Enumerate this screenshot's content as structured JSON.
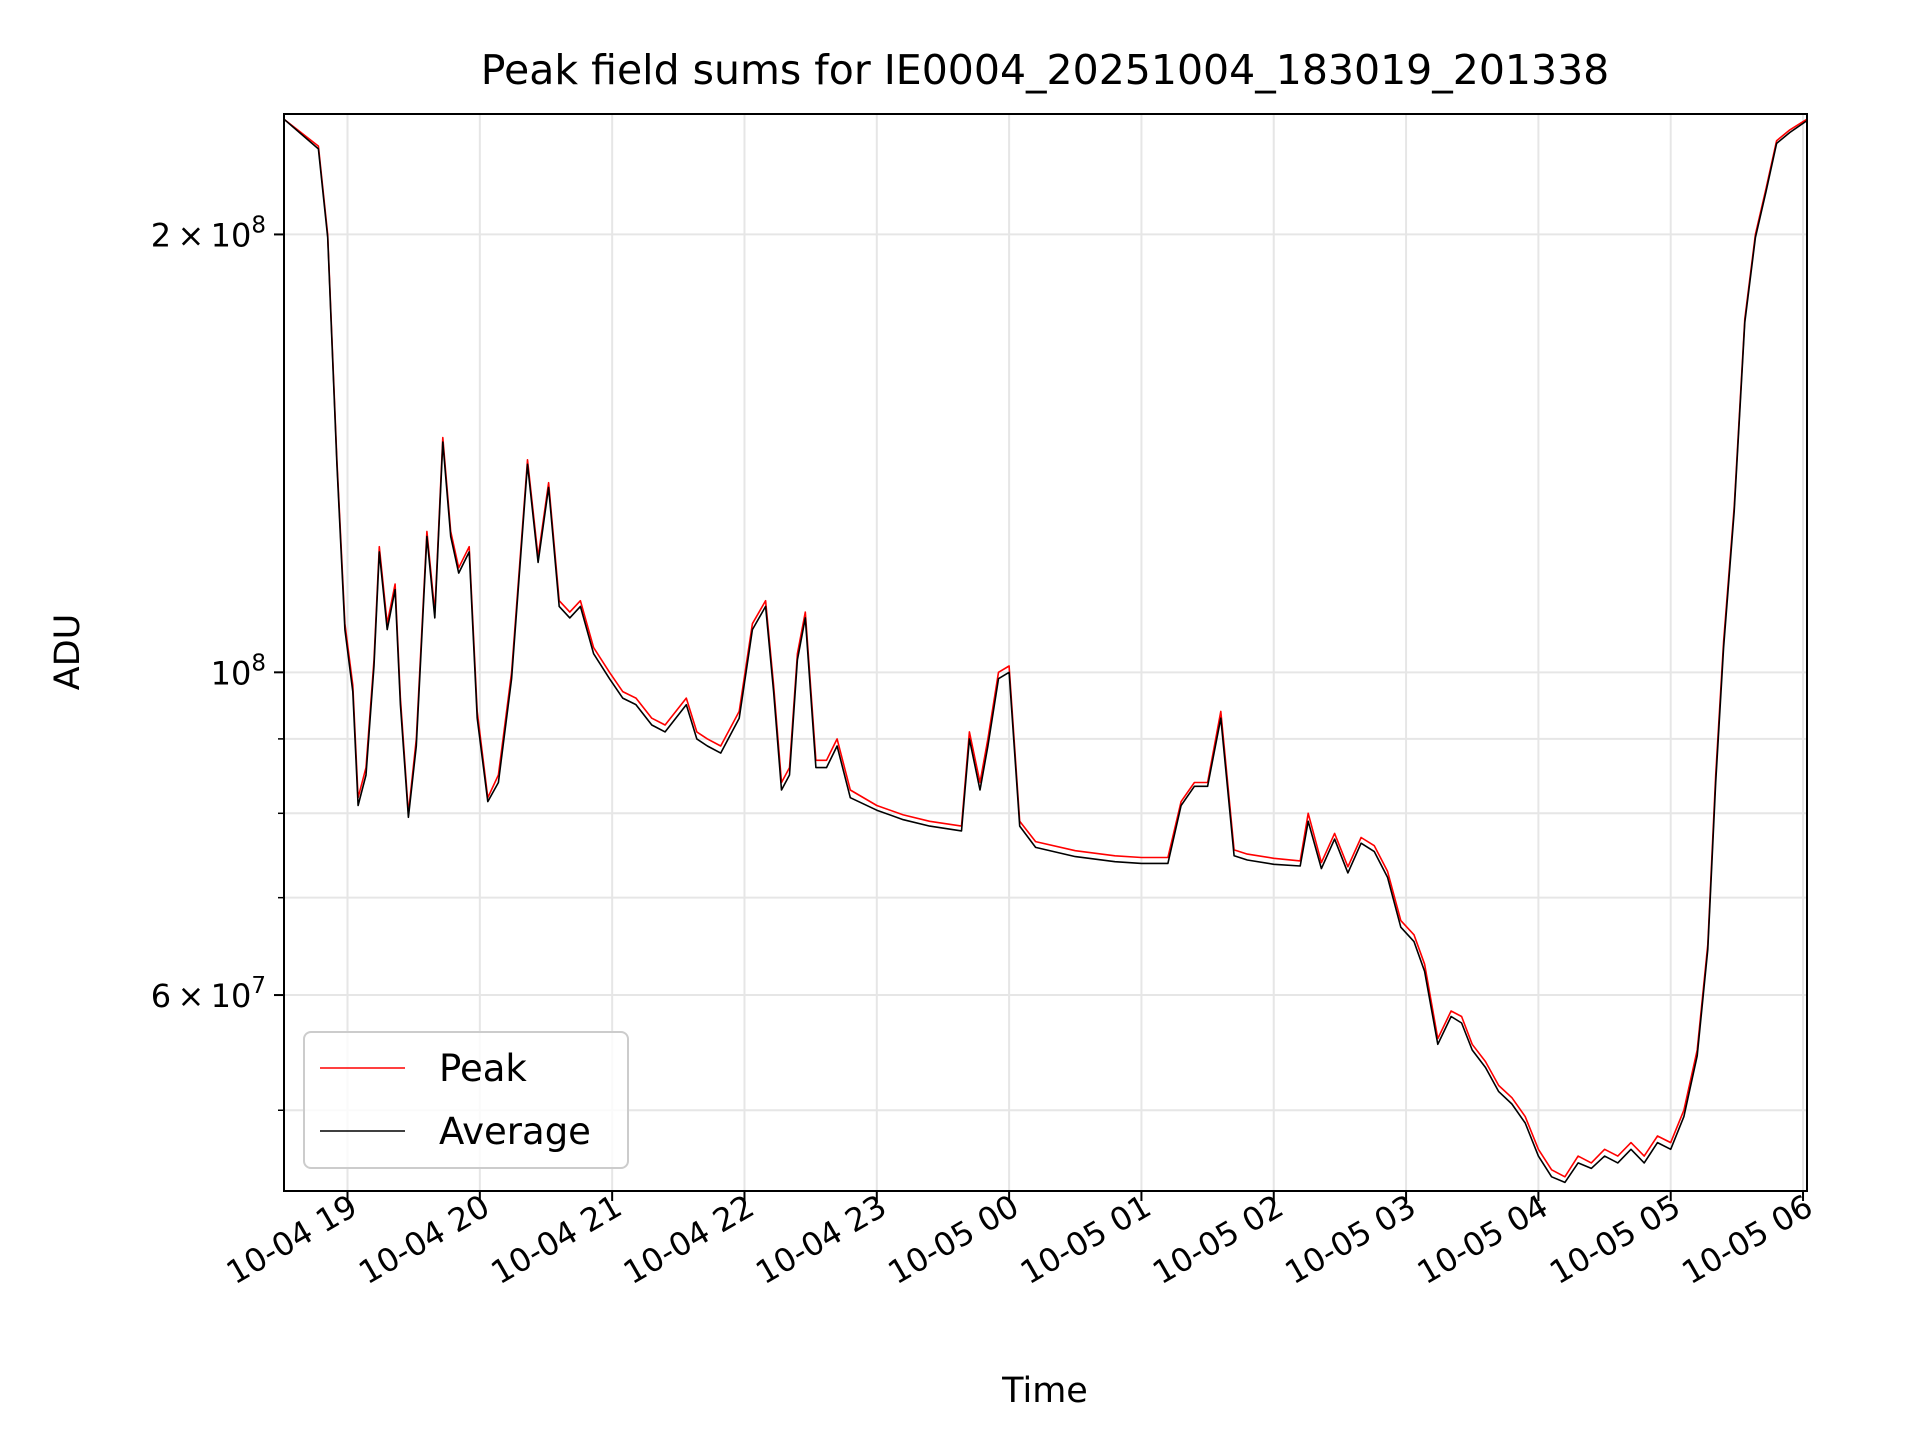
{
  "chart_data": {
    "type": "line",
    "title": "Peak field sums for IE0004_20251004_183019_201338",
    "xlabel": "Time",
    "ylabel": "ADU",
    "yscale": "log",
    "grid": true,
    "legend_position": "lower-left",
    "xlim": [
      18.52,
      30.03
    ],
    "ylim": [
      44000000,
      242000000
    ],
    "x_ticks": [
      {
        "value": 19,
        "label": "10-04 19"
      },
      {
        "value": 20,
        "label": "10-04 20"
      },
      {
        "value": 21,
        "label": "10-04 21"
      },
      {
        "value": 22,
        "label": "10-04 22"
      },
      {
        "value": 23,
        "label": "10-04 23"
      },
      {
        "value": 24,
        "label": "10-05 00"
      },
      {
        "value": 25,
        "label": "10-05 01"
      },
      {
        "value": 26,
        "label": "10-05 02"
      },
      {
        "value": 27,
        "label": "10-05 03"
      },
      {
        "value": 28,
        "label": "10-05 04"
      },
      {
        "value": 29,
        "label": "10-05 05"
      },
      {
        "value": 30,
        "label": "10-05 06"
      }
    ],
    "y_major_ticks": [
      {
        "value": 60000000,
        "mantissa": "6",
        "base": "10",
        "exponent": "7"
      },
      {
        "value": 100000000,
        "mantissa": "",
        "base": "10",
        "exponent": "8"
      },
      {
        "value": 200000000,
        "mantissa": "2",
        "base": "10",
        "exponent": "8"
      }
    ],
    "y_minor_ticks": [
      50000000,
      70000000,
      80000000,
      90000000
    ],
    "x": [
      18.52,
      18.78,
      18.85,
      18.92,
      18.98,
      19.04,
      19.08,
      19.14,
      19.2,
      19.24,
      19.3,
      19.36,
      19.4,
      19.46,
      19.52,
      19.6,
      19.66,
      19.72,
      19.78,
      19.84,
      19.92,
      19.98,
      20.06,
      20.14,
      20.24,
      20.36,
      20.44,
      20.52,
      20.6,
      20.68,
      20.76,
      20.86,
      20.98,
      21.08,
      21.18,
      21.3,
      21.4,
      21.56,
      21.64,
      21.72,
      21.82,
      21.96,
      22.06,
      22.16,
      22.22,
      22.28,
      22.34,
      22.4,
      22.46,
      22.54,
      22.62,
      22.7,
      22.8,
      23.0,
      23.2,
      23.4,
      23.64,
      23.7,
      23.78,
      23.84,
      23.92,
      24.0,
      24.08,
      24.2,
      24.5,
      24.8,
      25.0,
      25.2,
      25.3,
      25.4,
      25.5,
      25.6,
      25.7,
      25.8,
      26.0,
      26.2,
      26.26,
      26.36,
      26.46,
      26.56,
      26.66,
      26.76,
      26.86,
      26.96,
      27.06,
      27.14,
      27.24,
      27.34,
      27.42,
      27.5,
      27.6,
      27.7,
      27.8,
      27.9,
      28.0,
      28.1,
      28.2,
      28.3,
      28.4,
      28.5,
      28.6,
      28.7,
      28.8,
      28.9,
      29.0,
      29.1,
      29.2,
      29.28,
      29.34,
      29.4,
      29.48,
      29.56,
      29.64,
      29.72,
      29.8,
      29.9,
      30.03
    ],
    "series": [
      {
        "name": "Peak",
        "color": "#ff0000",
        "values": [
          240000000,
          230000000,
          200000000,
          140000000,
          108000000,
          98000000,
          82000000,
          86000000,
          102000000,
          122000000,
          108000000,
          115000000,
          96000000,
          80000000,
          90000000,
          125000000,
          110000000,
          145000000,
          125000000,
          118000000,
          122000000,
          94000000,
          82000000,
          85000000,
          100000000,
          140000000,
          120000000,
          135000000,
          112000000,
          110000000,
          112000000,
          104000000,
          100000000,
          97000000,
          96000000,
          93000000,
          92000000,
          96000000,
          91000000,
          90000000,
          89000000,
          94000000,
          108000000,
          112000000,
          98000000,
          84000000,
          86000000,
          103000000,
          110000000,
          87000000,
          87000000,
          90000000,
          83000000,
          81000000,
          79800000,
          79000000,
          78400000,
          91000000,
          84000000,
          90000000,
          100000000,
          101000000,
          79000000,
          76500000,
          75400000,
          74800000,
          74600000,
          74600000,
          81500000,
          84000000,
          84000000,
          94000000,
          75500000,
          75000000,
          74500000,
          74200000,
          80000000,
          74000000,
          77500000,
          73500000,
          77000000,
          76000000,
          73000000,
          67500000,
          66000000,
          63000000,
          56000000,
          58500000,
          58000000,
          55500000,
          54000000,
          52000000,
          51000000,
          49500000,
          47000000,
          45500000,
          45000000,
          46500000,
          46000000,
          47000000,
          46500000,
          47500000,
          46500000,
          48000000,
          47500000,
          50000000,
          55000000,
          65000000,
          85000000,
          105000000,
          130000000,
          175000000,
          200000000,
          215000000,
          232000000,
          236000000,
          240000000
        ]
      },
      {
        "name": "Average",
        "color": "#000000",
        "values": [
          240000000,
          229000000,
          199000000,
          139000000,
          107000000,
          97000000,
          81000000,
          85000000,
          101000000,
          121000000,
          107000000,
          114000000,
          95000000,
          79500000,
          89000000,
          124000000,
          109000000,
          144000000,
          124000000,
          117000000,
          121000000,
          93000000,
          81500000,
          84000000,
          99000000,
          139000000,
          119000000,
          134000000,
          111000000,
          109000000,
          111000000,
          103000000,
          99000000,
          96000000,
          95000000,
          92000000,
          91000000,
          95000000,
          90000000,
          89000000,
          88000000,
          93000000,
          107000000,
          111000000,
          97000000,
          83000000,
          85000000,
          102000000,
          109000000,
          86000000,
          86000000,
          89000000,
          82000000,
          80400000,
          79200000,
          78400000,
          77800000,
          90000000,
          83000000,
          89000000,
          99000000,
          100000000,
          78400000,
          75800000,
          74700000,
          74100000,
          73900000,
          73900000,
          81000000,
          83500000,
          83500000,
          93000000,
          74800000,
          74300000,
          73800000,
          73600000,
          79000000,
          73300000,
          76800000,
          72800000,
          76300000,
          75300000,
          72300000,
          66800000,
          65300000,
          62300000,
          55500000,
          58000000,
          57400000,
          55000000,
          53500000,
          51500000,
          50500000,
          49000000,
          46500000,
          45000000,
          44600000,
          46000000,
          45600000,
          46500000,
          46000000,
          47000000,
          46000000,
          47500000,
          47000000,
          49500000,
          54500000,
          64500000,
          84000000,
          104000000,
          129000000,
          174000000,
          199000000,
          214000000,
          231000000,
          235000000,
          239500000
        ]
      }
    ]
  }
}
